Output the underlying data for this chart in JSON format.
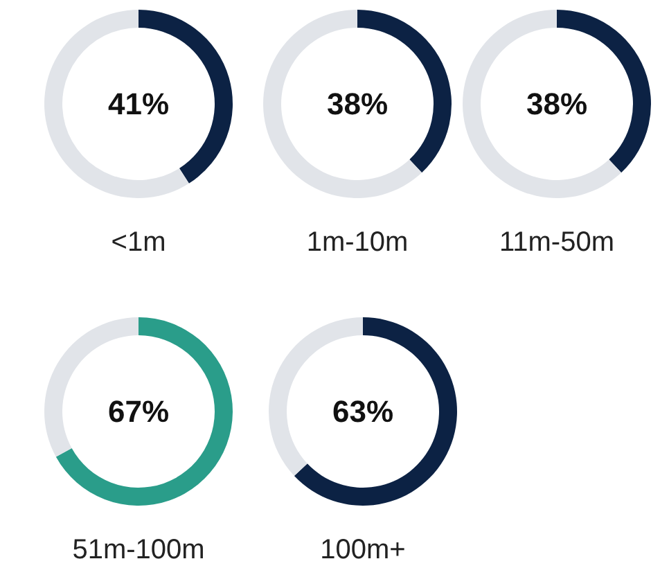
{
  "chart_data": [
    {
      "type": "donut",
      "title": "<1m",
      "categories": [
        null,
        null
      ],
      "values": [
        41,
        59
      ],
      "colors": [
        "#0c2244",
        "#e1e4e9"
      ],
      "value_labels": [
        "41%",
        null
      ]
    },
    {
      "type": "donut",
      "title": "1m-10m",
      "categories": [
        null,
        null
      ],
      "values": [
        38,
        62
      ],
      "colors": [
        "#0c2244",
        "#e1e4e9"
      ],
      "value_labels": [
        "38%",
        null
      ]
    },
    {
      "type": "donut",
      "title": "11m-50m",
      "categories": [
        null,
        null
      ],
      "values": [
        38,
        62
      ],
      "colors": [
        "#0c2244",
        "#e1e4e9"
      ],
      "value_labels": [
        "38%",
        null
      ]
    },
    {
      "type": "donut",
      "title": "51m-100m",
      "categories": [
        null,
        null
      ],
      "values": [
        67,
        33
      ],
      "colors": [
        "#2a9d8a",
        "#e1e4e9"
      ],
      "value_labels": [
        "67%",
        null
      ]
    },
    {
      "type": "donut",
      "title": "100m+",
      "categories": [
        null,
        null
      ],
      "values": [
        63,
        37
      ],
      "colors": [
        "#0c2244",
        "#e1e4e9"
      ],
      "value_labels": [
        "63%",
        null
      ]
    }
  ]
}
